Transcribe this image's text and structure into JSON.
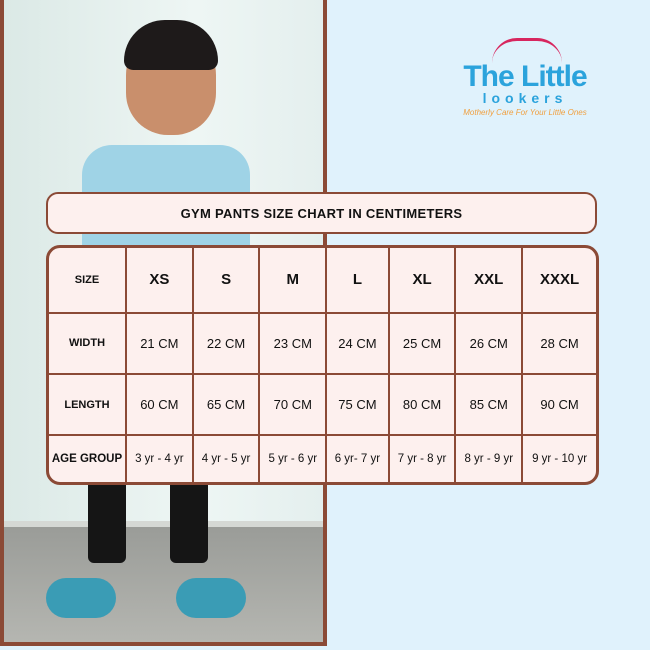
{
  "brand": {
    "name_line1": "The Little",
    "name_line2": "lookers",
    "tagline": "Motherly Care For Your Little Ones",
    "colors": {
      "blue": "#2ba3dc",
      "pink": "#d7265e",
      "orange": "#f0a040"
    }
  },
  "title": "GYM PANTS SIZE CHART IN CENTIMETERS",
  "colors": {
    "border": "#8b4a36",
    "cell": "#fdf0ee",
    "background": "#e0f2fc"
  },
  "table": {
    "header": [
      "SIZE",
      "XS",
      "S",
      "M",
      "L",
      "XL",
      "XXL",
      "XXXL"
    ],
    "rows": [
      [
        "WIDTH",
        "21 CM",
        "22 CM",
        "23 CM",
        "24 CM",
        "25 CM",
        "26 CM",
        "28 CM"
      ],
      [
        "LENGTH",
        "60 CM",
        "65 CM",
        "70 CM",
        "75 CM",
        "80 CM",
        "85 CM",
        "90 CM"
      ],
      [
        "AGE GROUP",
        "3 yr - 4 yr",
        "4 yr - 5 yr",
        "5 yr - 6 yr",
        "6 yr- 7 yr",
        "7 yr - 8 yr",
        "8 yr - 9 yr",
        "9 yr - 10 yr"
      ]
    ]
  }
}
